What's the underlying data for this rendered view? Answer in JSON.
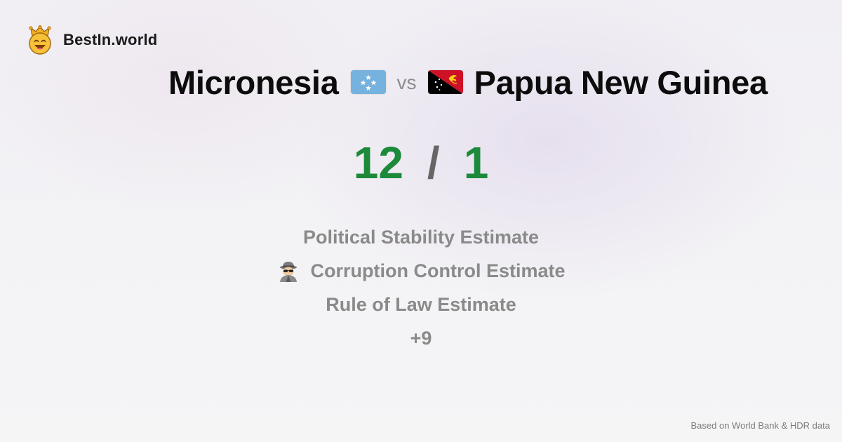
{
  "brand": {
    "name": "BestIn.world",
    "logo_icon": "crowned-smiley-icon"
  },
  "comparison": {
    "left_country": "Micronesia",
    "left_flag": "micronesia-flag-icon",
    "vs_label": "vs",
    "right_country": "Papua New Guinea",
    "right_flag": "papua-new-guinea-flag-icon"
  },
  "score": {
    "left": "12",
    "separator": "/",
    "right": "1",
    "color": "#1c8a3a"
  },
  "metrics": [
    {
      "label": "Political Stability Estimate",
      "icon": ""
    },
    {
      "label": "Corruption Control Estimate",
      "icon": "detective-icon"
    },
    {
      "label": "Rule of Law Estimate",
      "icon": ""
    },
    {
      "label": "+9",
      "icon": ""
    }
  ],
  "footer": {
    "text": "Based on World Bank & HDR data"
  }
}
